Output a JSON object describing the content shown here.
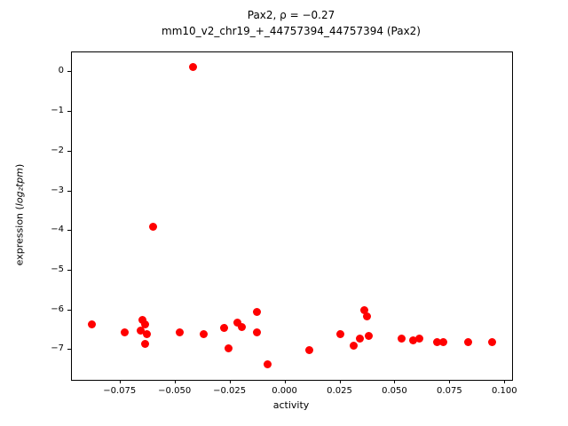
{
  "figure": {
    "title_line1": "Pax2, ρ = −0.27",
    "title_line2": "mm10_v2_chr19_+_44757394_44757394 (Pax2)"
  },
  "axis": {
    "xlabel": "activity",
    "ylabel_prefix": "expression (",
    "ylabel_math": "log₂tpm",
    "ylabel_suffix": ")"
  },
  "chart_data": {
    "type": "scatter",
    "title": "Pax2, ρ = −0.27",
    "subtitle": "mm10_v2_chr19_+_44757394_44757394 (Pax2)",
    "xlabel": "activity",
    "ylabel": "expression (log₂tpm)",
    "marker_color": "#ff0000",
    "grid": false,
    "legend": "none",
    "xlim": [
      -0.0971,
      0.1031
    ],
    "ylim": [
      -7.75,
      0.5
    ],
    "x_ticks": [
      {
        "v": -0.075,
        "label": "−0.075"
      },
      {
        "v": -0.05,
        "label": "−0.050"
      },
      {
        "v": -0.025,
        "label": "−0.025"
      },
      {
        "v": 0.0,
        "label": "0.000"
      },
      {
        "v": 0.025,
        "label": "0.025"
      },
      {
        "v": 0.05,
        "label": "0.050"
      },
      {
        "v": 0.075,
        "label": "0.075"
      },
      {
        "v": 0.1,
        "label": "0.100"
      }
    ],
    "y_ticks": [
      {
        "v": 0,
        "label": "0"
      },
      {
        "v": -1,
        "label": "−1"
      },
      {
        "v": -2,
        "label": "−2"
      },
      {
        "v": -3,
        "label": "−3"
      },
      {
        "v": -4,
        "label": "−4"
      },
      {
        "v": -5,
        "label": "−5"
      },
      {
        "v": -6,
        "label": "−6"
      },
      {
        "v": -7,
        "label": "−7"
      }
    ],
    "points": [
      [
        -0.042,
        0.12
      ],
      [
        -0.06,
        -3.9
      ],
      [
        -0.088,
        -6.35
      ],
      [
        -0.073,
        -6.55
      ],
      [
        -0.065,
        -6.25
      ],
      [
        -0.064,
        -6.35
      ],
      [
        -0.066,
        -6.5
      ],
      [
        -0.063,
        -6.6
      ],
      [
        -0.064,
        -6.85
      ],
      [
        -0.048,
        -6.55
      ],
      [
        -0.037,
        -6.6
      ],
      [
        -0.028,
        -6.45
      ],
      [
        -0.026,
        -6.95
      ],
      [
        -0.022,
        -6.3
      ],
      [
        -0.02,
        -6.42
      ],
      [
        -0.013,
        -6.05
      ],
      [
        -0.013,
        -6.55
      ],
      [
        -0.008,
        -7.35
      ],
      [
        0.011,
        -7.0
      ],
      [
        0.025,
        -6.6
      ],
      [
        0.031,
        -6.9
      ],
      [
        0.036,
        -6.0
      ],
      [
        0.037,
        -6.15
      ],
      [
        0.034,
        -6.7
      ],
      [
        0.038,
        -6.65
      ],
      [
        0.053,
        -6.7
      ],
      [
        0.058,
        -6.75
      ],
      [
        0.061,
        -6.7
      ],
      [
        0.069,
        -6.8
      ],
      [
        0.072,
        -6.8
      ],
      [
        0.083,
        -6.8
      ],
      [
        0.094,
        -6.8
      ]
    ]
  }
}
